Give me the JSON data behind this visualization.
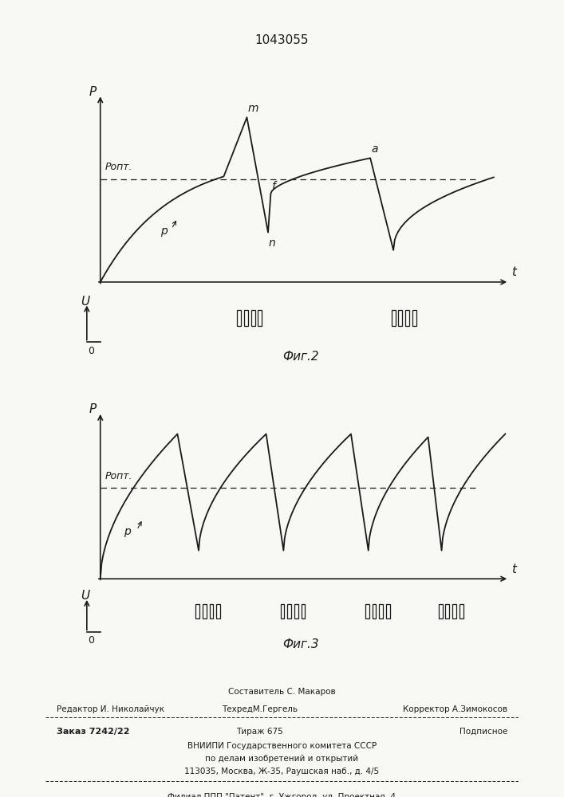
{
  "title": "1043055",
  "fig2_label": "Фиг.2",
  "fig3_label": "Фиг.3",
  "p_opt_label": "Pопт.",
  "p_label": "P",
  "p_label2": "p",
  "P_axis_label": "P",
  "U_axis_label": "U",
  "t_axis_label": "t",
  "point_m": "m",
  "point_f": "f",
  "point_n": "n",
  "point_a": "a",
  "footer_line1": "Составитель С. Макаров",
  "footer_line2_left": "Редактор И. Николайчук",
  "footer_line2_mid": "ТехредМ.Гергель",
  "footer_line2_right": "Корректор А.Зимокосов",
  "footer_line3_left": "Заказ 7242/22",
  "footer_line3_mid": "Тираж 675",
  "footer_line3_right": "Подписное",
  "footer_line4": "ВНИИПИ Государственного комитета СССР",
  "footer_line5": "по делам изобретений и открытий",
  "footer_line6": "113035, Москва, Ж-35, Раушская наб., д. 4/5",
  "footer_line7": "Филиал ППП \"Патент\", г. Ужгород, ул. Проектная, 4",
  "bg_color": "#f8f8f4",
  "line_color": "#1a1a1a"
}
